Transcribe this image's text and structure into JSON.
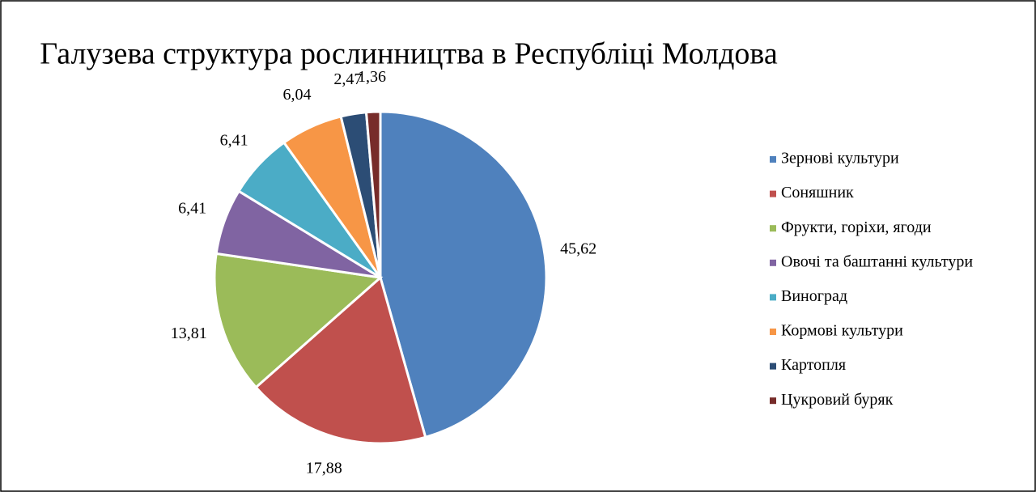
{
  "chart_data": {
    "type": "pie",
    "title": "Галузева структура рослинництва в Республіці Молдова",
    "categories": [
      "Зернові культури",
      "Соняшник",
      "Фрукти, горіхи, ягоди",
      "Овочі та баштанні культури",
      "Виноград",
      "Кормові культури",
      "Картопля",
      "Цукровий буряк"
    ],
    "values": [
      45.62,
      17.88,
      13.81,
      6.41,
      6.41,
      6.04,
      2.47,
      1.36
    ],
    "value_labels": [
      "45,62",
      "17,88",
      "13,81",
      "6,41",
      "6,41",
      "6,04",
      "2,47",
      "1,36"
    ],
    "colors": [
      "#4f81bd",
      "#c0504d",
      "#9bbb59",
      "#8064a2",
      "#4bacc6",
      "#f79646",
      "#2c4d75",
      "#772c2a"
    ],
    "legend": "right"
  }
}
